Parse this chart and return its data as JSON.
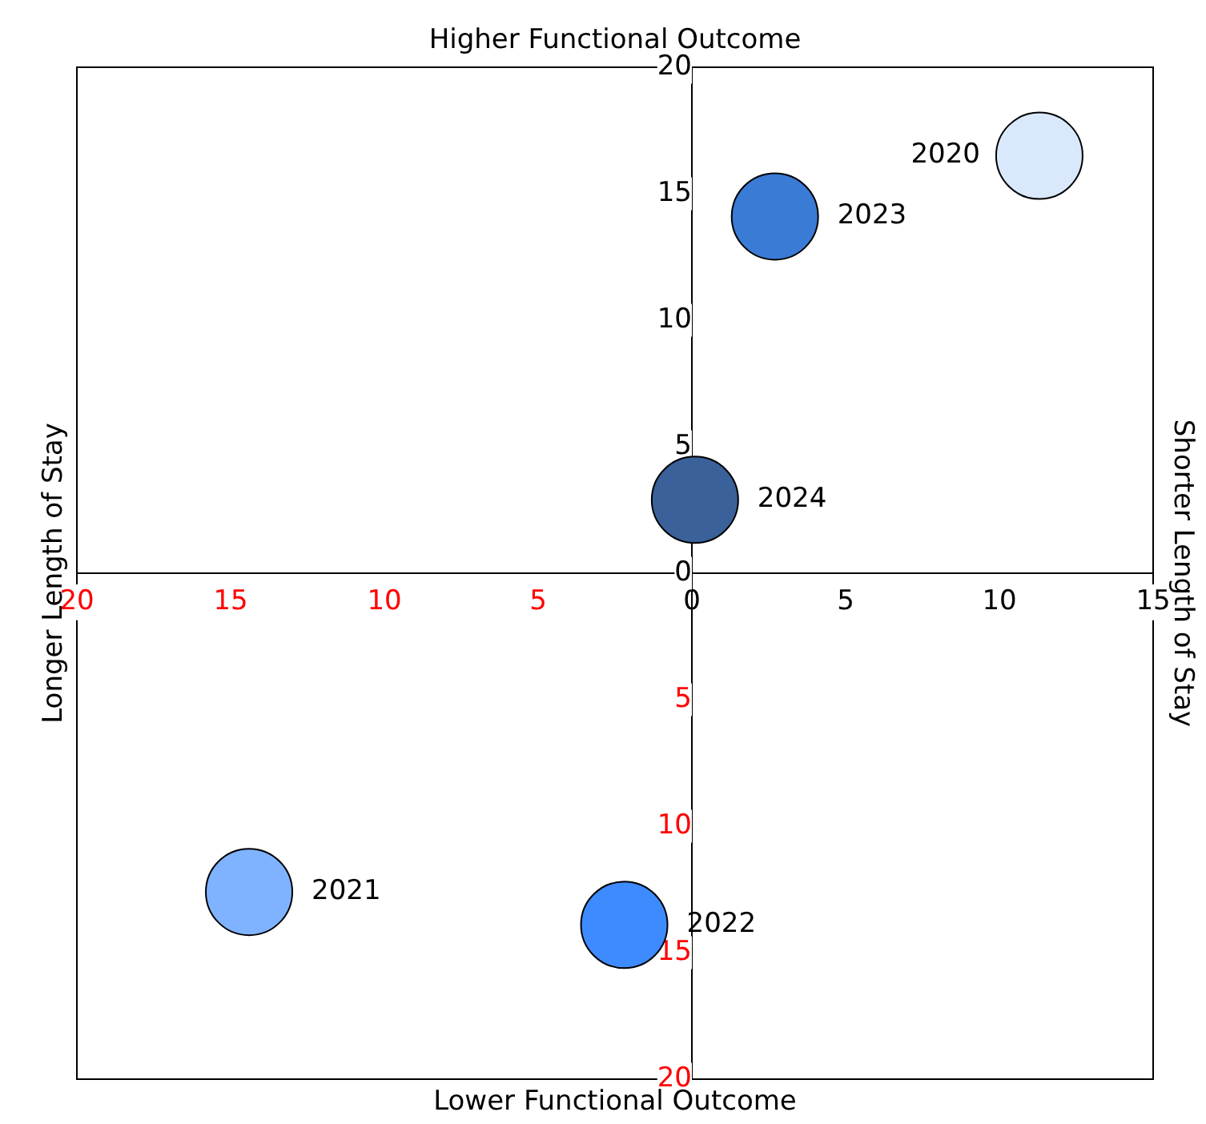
{
  "chart_data": {
    "type": "bubble",
    "title": "Higher Functional Outcome",
    "xlabel": "Lower Functional Outcome",
    "ylabel": "Longer Length of Stay",
    "y2label": "Shorter Length of Stay",
    "series": [
      {
        "name": "2020",
        "color": "#dae8fc",
        "x": [
          11.3
        ],
        "values": [
          16.5
        ],
        "sizes": [
          1
        ]
      },
      {
        "name": "2023",
        "color": "#3a7bd5",
        "x": [
          2.7
        ],
        "values": [
          14.1
        ],
        "sizes": [
          1
        ]
      },
      {
        "name": "2024",
        "color": "#3a6199",
        "x": [
          0.1
        ],
        "values": [
          2.9
        ],
        "sizes": [
          1
        ]
      },
      {
        "name": "2021",
        "color": "#7fb3ff",
        "x": [
          -14.4
        ],
        "values": [
          -12.6
        ],
        "sizes": [
          1
        ]
      },
      {
        "name": "2022",
        "color": "#3d8bff",
        "x": [
          -2.2
        ],
        "values": [
          -13.9
        ],
        "sizes": [
          1
        ]
      }
    ],
    "xlim": [
      -20,
      15
    ],
    "xticks": [
      {
        "value": -20,
        "label": "20"
      },
      {
        "value": -15,
        "label": "15"
      },
      {
        "value": -10,
        "label": "10"
      },
      {
        "value": -5,
        "label": "5"
      },
      0,
      5,
      10,
      15
    ],
    "ylim": [
      -20,
      20
    ],
    "yticks": [
      {
        "value": -20,
        "label": "20"
      },
      {
        "value": -15,
        "label": "15"
      },
      {
        "value": -10,
        "label": "10"
      },
      {
        "value": -5,
        "label": "5"
      },
      0,
      5,
      10,
      15,
      20
    ],
    "grid": false,
    "legend": false
  }
}
